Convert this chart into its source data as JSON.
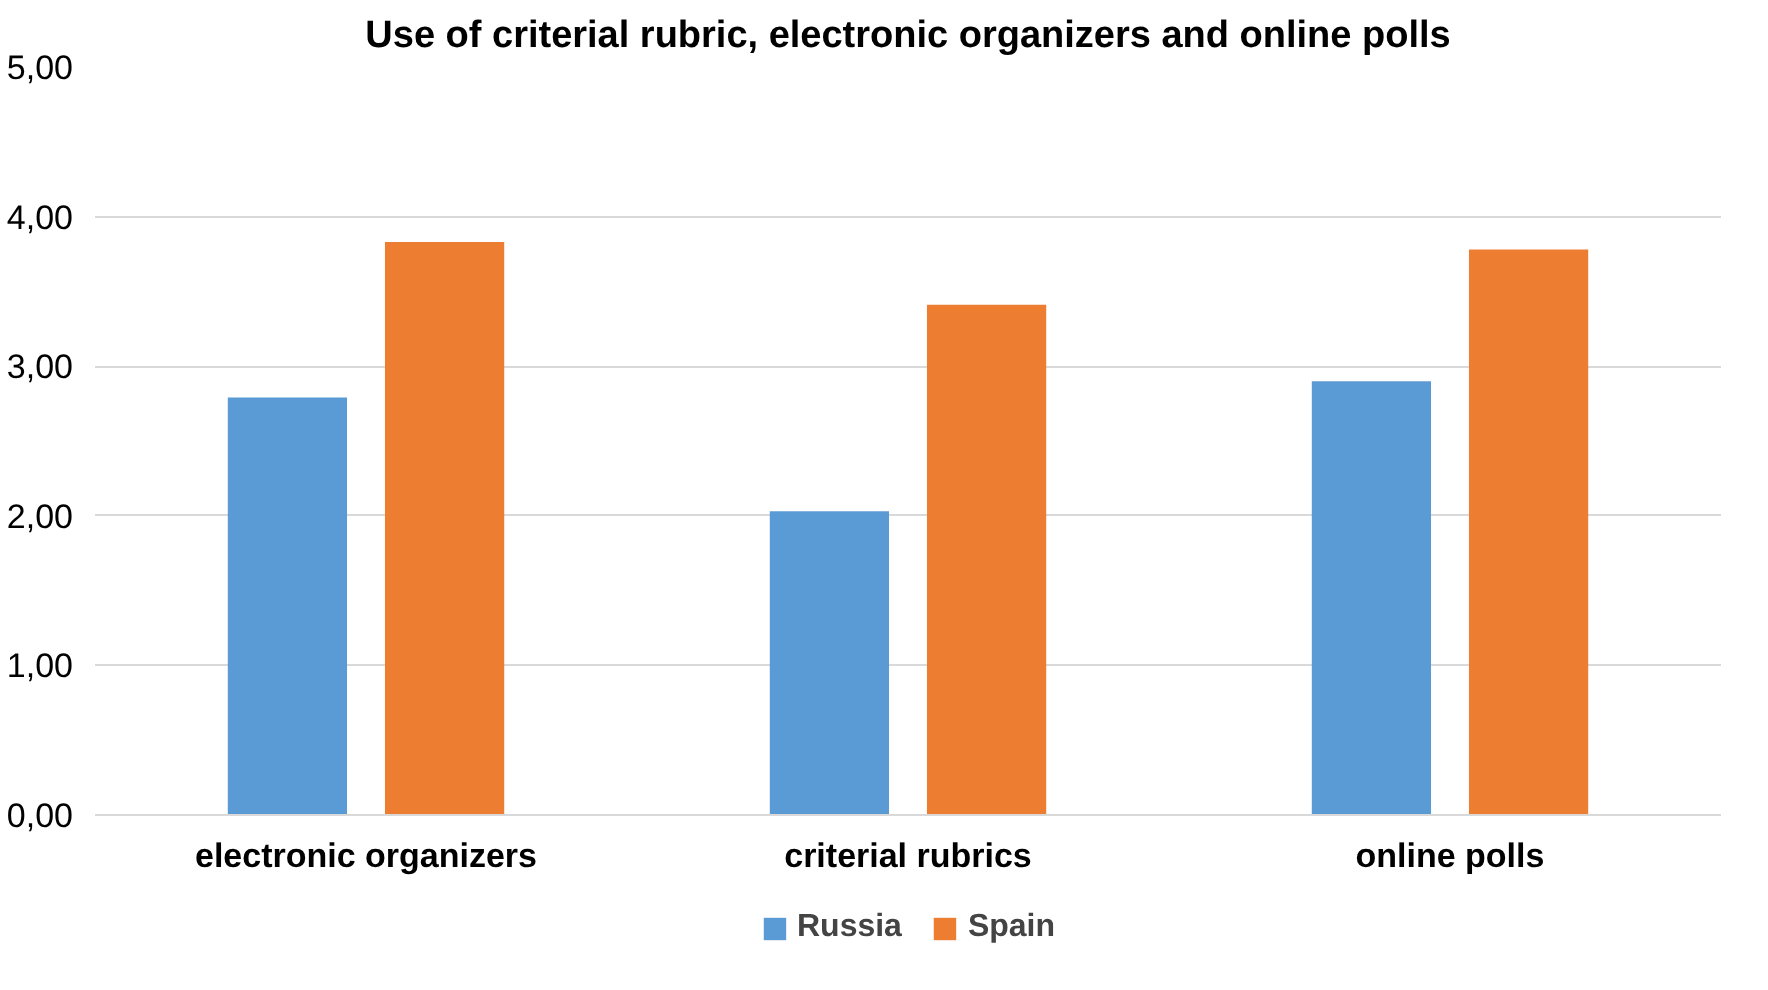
{
  "chart_data": {
    "type": "bar",
    "title": "Use of criterial rubric, electronic organizers and online polls",
    "categories": [
      "electronic organizers",
      "criterial rubrics",
      "online polls"
    ],
    "series": [
      {
        "name": "Russia",
        "color": "#5b9bd5",
        "values": [
          2.79,
          2.03,
          2.9
        ]
      },
      {
        "name": "Spain",
        "color": "#ed7d31",
        "values": [
          3.83,
          3.41,
          3.78
        ]
      }
    ],
    "ylim": [
      0,
      5
    ],
    "yticks": [
      {
        "value": 0,
        "label": "0,00"
      },
      {
        "value": 1,
        "label": "1,00"
      },
      {
        "value": 2,
        "label": "2,00"
      },
      {
        "value": 3,
        "label": "3,00"
      },
      {
        "value": 4,
        "label": "4,00"
      },
      {
        "value": 5,
        "label": "5,00"
      }
    ],
    "grid": "y",
    "legend": "bottom"
  }
}
